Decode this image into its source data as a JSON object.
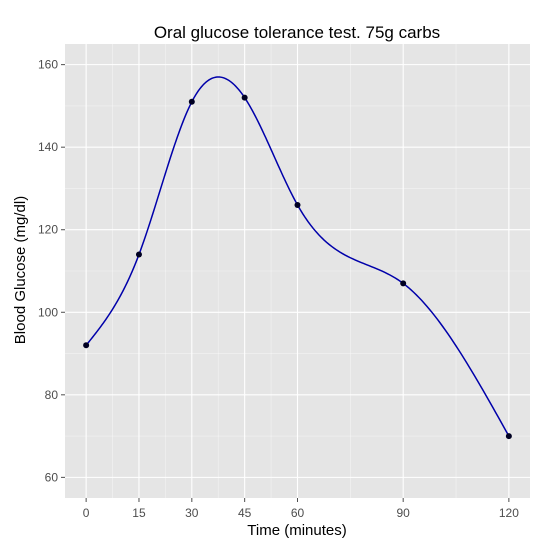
{
  "chart_data": {
    "type": "line",
    "title": "Oral glucose tolerance test. 75g carbs",
    "xlabel": "Time (minutes)",
    "ylabel": "Blood Glucose (mg/dl)",
    "x": [
      0,
      15,
      30,
      45,
      60,
      90,
      120
    ],
    "series": [
      {
        "values": [
          92,
          114,
          151,
          152,
          126,
          107,
          70
        ]
      }
    ],
    "xlim": [
      -6,
      126
    ],
    "ylim": [
      55,
      165
    ],
    "xticks": [
      0,
      15,
      30,
      45,
      60,
      90,
      120
    ],
    "yticks": [
      60,
      80,
      100,
      120,
      140,
      160
    ],
    "xtick_labels": [
      "0",
      "15",
      "30",
      "45",
      "60",
      "90",
      "120"
    ],
    "ytick_labels": [
      "60",
      "80",
      "100",
      "120",
      "140",
      "160"
    ],
    "grid": true,
    "smooth": true,
    "colors": {
      "panel_background": "#e5e5e5",
      "grid": "#ffffff",
      "line": "#0000aa",
      "points": "#000022"
    }
  }
}
